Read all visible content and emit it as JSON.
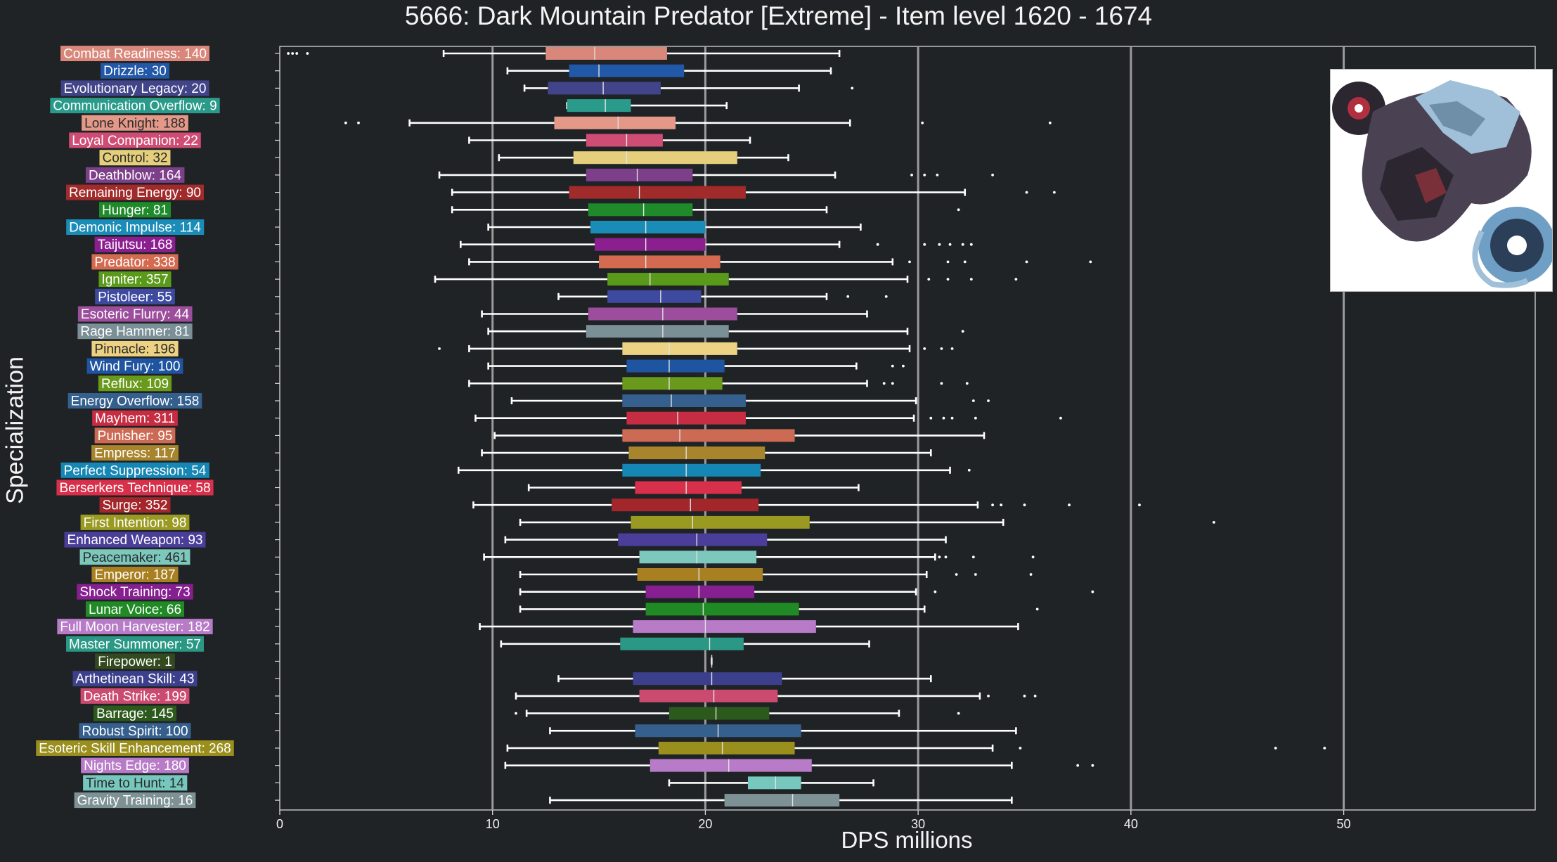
{
  "chart_data": {
    "type": "boxplot",
    "title": "5666: Dark Mountain Predator [Extreme] - Item level 1620 - 1674",
    "xlabel": "DPS millions",
    "ylabel": "Specialization",
    "xlim": [
      0,
      59
    ],
    "xticks": [
      0,
      10,
      20,
      30,
      40,
      50
    ],
    "grid": "vertical major at 10, 20, 30, 40, 50",
    "median_line": 20,
    "series": [
      {
        "name": "Combat Readiness",
        "count": 140,
        "label": "Combat Readiness: 140",
        "color": "#d9877a",
        "whisker_low": 7.7,
        "q1": 12.5,
        "median": 14.8,
        "q3": 18.2,
        "whisker_high": 26.3,
        "outliers": [
          0.4,
          0.6,
          0.8,
          1.3
        ]
      },
      {
        "name": "Drizzle",
        "count": 30,
        "label": "Drizzle: 30",
        "color": "#2258a8",
        "whisker_low": 10.7,
        "q1": 13.6,
        "median": 15.0,
        "q3": 19.0,
        "whisker_high": 25.9,
        "outliers": []
      },
      {
        "name": "Evolutionary Legacy",
        "count": 20,
        "label": "Evolutionary Legacy: 20",
        "color": "#42448a",
        "whisker_low": 11.5,
        "q1": 12.6,
        "median": 15.2,
        "q3": 17.9,
        "whisker_high": 24.4,
        "outliers": [
          26.9
        ]
      },
      {
        "name": "Communication Overflow",
        "count": 9,
        "label": "Communication Overflow: 9",
        "color": "#2a9b8a",
        "whisker_low": 13.5,
        "q1": 13.5,
        "median": 15.3,
        "q3": 16.5,
        "whisker_high": 21.0,
        "outliers": []
      },
      {
        "name": "Lone Knight",
        "count": 188,
        "label": "Lone Knight: 188",
        "color": "#e39888",
        "whisker_low": 6.1,
        "q1": 12.9,
        "median": 15.9,
        "q3": 18.6,
        "whisker_high": 26.8,
        "outliers": [
          3.1,
          3.7,
          30.2,
          36.2
        ]
      },
      {
        "name": "Loyal Companion",
        "count": 22,
        "label": "Loyal Companion: 22",
        "color": "#cf4c74",
        "whisker_low": 8.9,
        "q1": 14.4,
        "median": 16.3,
        "q3": 18.0,
        "whisker_high": 22.1,
        "outliers": []
      },
      {
        "name": "Control",
        "count": 32,
        "label": "Control: 32",
        "color": "#e6cf7c",
        "whisker_low": 10.3,
        "q1": 13.8,
        "median": 16.3,
        "q3": 21.5,
        "whisker_high": 23.9,
        "outliers": []
      },
      {
        "name": "Deathblow",
        "count": 164,
        "label": "Deathblow: 164",
        "color": "#7e3f8a",
        "whisker_low": 7.5,
        "q1": 14.4,
        "median": 16.8,
        "q3": 19.4,
        "whisker_high": 26.1,
        "outliers": [
          29.7,
          30.3,
          30.9,
          33.5
        ]
      },
      {
        "name": "Remaining Energy",
        "count": 90,
        "label": "Remaining Energy: 90",
        "color": "#a12a2a",
        "whisker_low": 8.1,
        "q1": 13.6,
        "median": 16.9,
        "q3": 21.9,
        "whisker_high": 32.2,
        "outliers": [
          35.1,
          36.4
        ]
      },
      {
        "name": "Hunger",
        "count": 81,
        "label": "Hunger: 81",
        "color": "#1f8a2a",
        "whisker_low": 8.1,
        "q1": 14.5,
        "median": 17.1,
        "q3": 19.4,
        "whisker_high": 25.7,
        "outliers": [
          31.9
        ]
      },
      {
        "name": "Demonic Impulse",
        "count": 114,
        "label": "Demonic Impulse: 114",
        "color": "#1a8cb8",
        "whisker_low": 9.8,
        "q1": 14.6,
        "median": 17.2,
        "q3": 20.0,
        "whisker_high": 27.3,
        "outliers": []
      },
      {
        "name": "Taijutsu",
        "count": 168,
        "label": "Taijutsu: 168",
        "color": "#8c1f90",
        "whisker_low": 8.5,
        "q1": 14.8,
        "median": 17.2,
        "q3": 20.0,
        "whisker_high": 26.3,
        "outliers": [
          28.1,
          30.3,
          31.0,
          31.5,
          32.1,
          32.5
        ]
      },
      {
        "name": "Predator",
        "count": 338,
        "label": "Predator: 338",
        "color": "#d46a50",
        "whisker_low": 8.9,
        "q1": 15.0,
        "median": 17.2,
        "q3": 20.7,
        "whisker_high": 28.8,
        "outliers": [
          29.6,
          31.4,
          32.2,
          35.1,
          38.1
        ]
      },
      {
        "name": "Igniter",
        "count": 357,
        "label": "Igniter: 357",
        "color": "#5a9a1a",
        "whisker_low": 7.3,
        "q1": 15.4,
        "median": 17.4,
        "q3": 21.1,
        "whisker_high": 29.5,
        "outliers": [
          30.5,
          31.4,
          32.5,
          34.6
        ]
      },
      {
        "name": "Pistoleer",
        "count": 55,
        "label": "Pistoleer: 55",
        "color": "#3e4aa0",
        "whisker_low": 13.1,
        "q1": 15.4,
        "median": 17.9,
        "q3": 19.8,
        "whisker_high": 25.7,
        "outliers": [
          26.7,
          28.5
        ]
      },
      {
        "name": "Esoteric Flurry",
        "count": 44,
        "label": "Esoteric Flurry: 44",
        "color": "#9c4e9c",
        "whisker_low": 9.5,
        "q1": 14.5,
        "median": 18.0,
        "q3": 21.5,
        "whisker_high": 27.6,
        "outliers": []
      },
      {
        "name": "Rage Hammer",
        "count": 81,
        "label": "Rage Hammer: 81",
        "color": "#7a8f96",
        "whisker_low": 9.8,
        "q1": 14.4,
        "median": 18.0,
        "q3": 21.1,
        "whisker_high": 29.5,
        "outliers": [
          32.1
        ]
      },
      {
        "name": "Pinnacle",
        "count": 196,
        "label": "Pinnacle: 196",
        "color": "#ecd282",
        "whisker_low": 8.9,
        "q1": 16.1,
        "median": 18.3,
        "q3": 21.5,
        "whisker_high": 29.6,
        "outliers": [
          7.5,
          30.3,
          31.1,
          31.6
        ]
      },
      {
        "name": "Wind Fury",
        "count": 100,
        "label": "Wind Fury: 100",
        "color": "#1f55a0",
        "whisker_low": 9.8,
        "q1": 16.3,
        "median": 18.3,
        "q3": 20.9,
        "whisker_high": 27.1,
        "outliers": [
          28.8,
          29.3
        ]
      },
      {
        "name": "Reflux",
        "count": 109,
        "label": "Reflux: 109",
        "color": "#6a9a1c",
        "whisker_low": 8.9,
        "q1": 16.1,
        "median": 18.3,
        "q3": 20.8,
        "whisker_high": 27.6,
        "outliers": [
          28.4,
          28.8,
          31.1,
          32.3
        ]
      },
      {
        "name": "Energy Overflow",
        "count": 158,
        "label": "Energy Overflow: 158",
        "color": "#35608e",
        "whisker_low": 10.9,
        "q1": 16.1,
        "median": 18.4,
        "q3": 21.9,
        "whisker_high": 29.9,
        "outliers": [
          32.6,
          33.3
        ]
      },
      {
        "name": "Mayhem",
        "count": 311,
        "label": "Mayhem: 311",
        "color": "#c62c42",
        "whisker_low": 9.2,
        "q1": 16.3,
        "median": 18.7,
        "q3": 21.9,
        "whisker_high": 29.8,
        "outliers": [
          30.6,
          31.2,
          31.6,
          32.7,
          36.7
        ]
      },
      {
        "name": "Punisher",
        "count": 95,
        "label": "Punisher: 95",
        "color": "#cd6a54",
        "whisker_low": 10.1,
        "q1": 16.1,
        "median": 18.8,
        "q3": 24.2,
        "whisker_high": 33.1,
        "outliers": []
      },
      {
        "name": "Empress",
        "count": 117,
        "label": "Empress: 117",
        "color": "#a8852c",
        "whisker_low": 9.5,
        "q1": 16.4,
        "median": 19.1,
        "q3": 22.8,
        "whisker_high": 30.6,
        "outliers": []
      },
      {
        "name": "Perfect Suppression",
        "count": 54,
        "label": "Perfect Suppression: 54",
        "color": "#1687b5",
        "whisker_low": 8.4,
        "q1": 16.1,
        "median": 19.1,
        "q3": 22.6,
        "whisker_high": 31.5,
        "outliers": [
          32.4
        ]
      },
      {
        "name": "Berserkers Technique",
        "count": 58,
        "label": "Berserkers Technique: 58",
        "color": "#d8304a",
        "whisker_low": 11.7,
        "q1": 16.7,
        "median": 19.1,
        "q3": 21.7,
        "whisker_high": 27.2,
        "outliers": []
      },
      {
        "name": "Surge",
        "count": 352,
        "label": "Surge: 352",
        "color": "#a3262a",
        "whisker_low": 9.1,
        "q1": 15.6,
        "median": 19.3,
        "q3": 22.5,
        "whisker_high": 32.8,
        "outliers": [
          33.5,
          33.9,
          35.0,
          37.1,
          40.4
        ]
      },
      {
        "name": "First Intention",
        "count": 98,
        "label": "First Intention: 98",
        "color": "#9a9a22",
        "whisker_low": 11.3,
        "q1": 16.5,
        "median": 19.4,
        "q3": 24.9,
        "whisker_high": 34.0,
        "outliers": [
          43.9
        ]
      },
      {
        "name": "Enhanced Weapon",
        "count": 93,
        "label": "Enhanced Weapon: 93",
        "color": "#4a3e9a",
        "whisker_low": 10.6,
        "q1": 15.9,
        "median": 19.6,
        "q3": 22.9,
        "whisker_high": 31.3,
        "outliers": []
      },
      {
        "name": "Peacemaker",
        "count": 461,
        "label": "Peacemaker: 461",
        "color": "#7cc8bd",
        "whisker_low": 9.6,
        "q1": 16.9,
        "median": 19.6,
        "q3": 22.4,
        "whisker_high": 30.8,
        "outliers": [
          31.0,
          31.3,
          32.6,
          35.4
        ]
      },
      {
        "name": "Emperor",
        "count": 187,
        "label": "Emperor: 187",
        "color": "#a88022",
        "whisker_low": 11.3,
        "q1": 16.8,
        "median": 19.7,
        "q3": 22.7,
        "whisker_high": 30.4,
        "outliers": [
          31.8,
          32.7,
          35.3
        ]
      },
      {
        "name": "Shock Training",
        "count": 73,
        "label": "Shock Training: 73",
        "color": "#861f90",
        "whisker_low": 11.3,
        "q1": 17.2,
        "median": 19.7,
        "q3": 22.3,
        "whisker_high": 29.9,
        "outliers": [
          30.8,
          38.2
        ]
      },
      {
        "name": "Lunar Voice",
        "count": 66,
        "label": "Lunar Voice: 66",
        "color": "#208a25",
        "whisker_low": 11.3,
        "q1": 17.2,
        "median": 19.9,
        "q3": 24.4,
        "whisker_high": 30.3,
        "outliers": [
          35.6
        ]
      },
      {
        "name": "Full Moon Harvester",
        "count": 182,
        "label": "Full Moon Harvester: 182",
        "color": "#b77bc8",
        "whisker_low": 9.4,
        "q1": 16.6,
        "median": 20.0,
        "q3": 25.2,
        "whisker_high": 34.7,
        "outliers": []
      },
      {
        "name": "Master Summoner",
        "count": 57,
        "label": "Master Summoner: 57",
        "color": "#2a9885",
        "whisker_low": 10.4,
        "q1": 16.0,
        "median": 20.2,
        "q3": 21.8,
        "whisker_high": 27.7,
        "outliers": []
      },
      {
        "name": "Firepower",
        "count": 1,
        "label": "Firepower: 1",
        "color": "#324a1e",
        "whisker_low": 20.3,
        "q1": 20.3,
        "median": 20.3,
        "q3": 20.3,
        "whisker_high": 20.3,
        "outliers": []
      },
      {
        "name": "Arthetinean Skill",
        "count": 43,
        "label": "Arthetinean Skill: 43",
        "color": "#3c3f8c",
        "whisker_low": 13.1,
        "q1": 16.6,
        "median": 20.3,
        "q3": 23.6,
        "whisker_high": 30.6,
        "outliers": []
      },
      {
        "name": "Death Strike",
        "count": 199,
        "label": "Death Strike: 199",
        "color": "#cb4a70",
        "whisker_low": 11.1,
        "q1": 16.9,
        "median": 20.4,
        "q3": 23.4,
        "whisker_high": 32.9,
        "outliers": [
          33.3,
          35.0,
          35.5
        ]
      },
      {
        "name": "Barrage",
        "count": 145,
        "label": "Barrage: 145",
        "color": "#2c5a1c",
        "whisker_low": 11.6,
        "q1": 18.3,
        "median": 20.5,
        "q3": 23.0,
        "whisker_high": 29.1,
        "outliers": [
          11.1,
          31.9
        ]
      },
      {
        "name": "Robust Spirit",
        "count": 100,
        "label": "Robust Spirit: 100",
        "color": "#35608e",
        "whisker_low": 12.7,
        "q1": 16.7,
        "median": 20.6,
        "q3": 24.5,
        "whisker_high": 34.6,
        "outliers": []
      },
      {
        "name": "Esoteric Skill Enhancement",
        "count": 268,
        "label": "Esoteric Skill Enhancement: 268",
        "color": "#9a8f1c",
        "whisker_low": 10.7,
        "q1": 17.8,
        "median": 20.8,
        "q3": 24.2,
        "whisker_high": 33.5,
        "outliers": [
          34.8,
          46.8,
          49.1
        ]
      },
      {
        "name": "Nights Edge",
        "count": 180,
        "label": "Nights Edge: 180",
        "color": "#b77bc8",
        "whisker_low": 10.6,
        "q1": 17.4,
        "median": 21.1,
        "q3": 25.0,
        "whisker_high": 34.4,
        "outliers": [
          37.5,
          38.2
        ]
      },
      {
        "name": "Time to Hunt",
        "count": 14,
        "label": "Time to Hunt: 14",
        "color": "#76c7bd",
        "whisker_low": 18.3,
        "q1": 22.0,
        "median": 23.3,
        "q3": 24.5,
        "whisker_high": 27.9,
        "outliers": []
      },
      {
        "name": "Gravity Training",
        "count": 16,
        "label": "Gravity Training: 16",
        "color": "#7e9296",
        "whisker_low": 12.7,
        "q1": 20.9,
        "median": 24.1,
        "q3": 26.3,
        "whisker_high": 34.4,
        "outliers": []
      }
    ]
  },
  "portrait": {
    "name": "boss-portrait",
    "palette": [
      "#ffffff",
      "#2b2630",
      "#9fc0d8",
      "#4a4252",
      "#b03040"
    ]
  }
}
